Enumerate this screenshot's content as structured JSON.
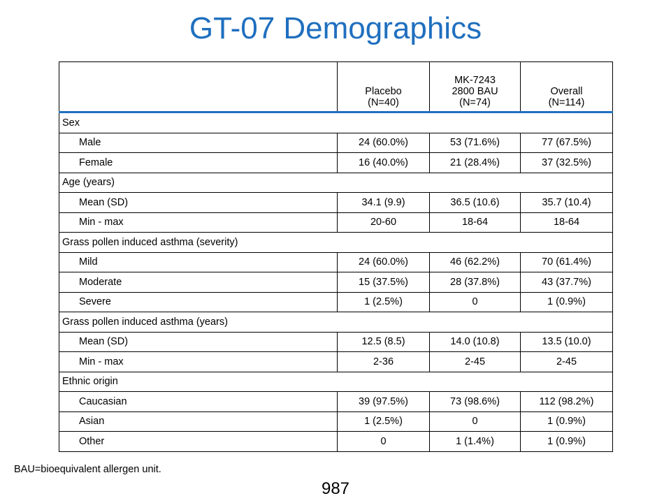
{
  "title": "GT-07 Demographics",
  "headers": {
    "placebo": [
      "Placebo",
      "(N=40)"
    ],
    "mk": [
      "MK-7243",
      "2800 BAU",
      "(N=74)"
    ],
    "overall": [
      "Overall",
      "(N=114)"
    ]
  },
  "rows": [
    {
      "type": "section",
      "label": "Sex"
    },
    {
      "type": "row",
      "label": "Male",
      "v": [
        "24 (60.0%)",
        "53 (71.6%)",
        "77 (67.5%)"
      ]
    },
    {
      "type": "row",
      "label": "Female",
      "v": [
        "16 (40.0%)",
        "21 (28.4%)",
        "37 (32.5%)"
      ]
    },
    {
      "type": "section",
      "label": "Age (years)"
    },
    {
      "type": "row",
      "label": "Mean (SD)",
      "v": [
        "34.1 (9.9)",
        "36.5 (10.6)",
        "35.7 (10.4)"
      ]
    },
    {
      "type": "row",
      "label": "Min - max",
      "v": [
        "20-60",
        "18-64",
        "18-64"
      ]
    },
    {
      "type": "section",
      "label": "Grass pollen induced asthma (severity)"
    },
    {
      "type": "row",
      "label": "Mild",
      "v": [
        "24 (60.0%)",
        "46 (62.2%)",
        "70 (61.4%)"
      ]
    },
    {
      "type": "row",
      "label": "Moderate",
      "v": [
        "15 (37.5%)",
        "28 (37.8%)",
        "43 (37.7%)"
      ]
    },
    {
      "type": "row",
      "label": "Severe",
      "v": [
        "1 (2.5%)",
        "0",
        "1 (0.9%)"
      ]
    },
    {
      "type": "section",
      "label": "Grass pollen induced asthma (years)"
    },
    {
      "type": "row",
      "label": "Mean (SD)",
      "v": [
        "12.5 (8.5)",
        "14.0 (10.8)",
        "13.5 (10.0)"
      ]
    },
    {
      "type": "row",
      "label": "Min - max",
      "v": [
        "2-36",
        "2-45",
        "2-45"
      ]
    },
    {
      "type": "section",
      "label": "Ethnic origin"
    },
    {
      "type": "row",
      "label": "Caucasian",
      "v": [
        "39 (97.5%)",
        "73 (98.6%)",
        "112 (98.2%)"
      ]
    },
    {
      "type": "row",
      "label": "Asian",
      "v": [
        "1 (2.5%)",
        "0",
        "1 (0.9%)"
      ]
    },
    {
      "type": "row",
      "label": "Other",
      "v": [
        "0",
        "1 (1.4%)",
        "1 (0.9%)"
      ]
    }
  ],
  "footnote": "BAU=bioequivalent allergen unit.",
  "page_number": "987",
  "colors": {
    "title": "#1f6fbf",
    "header_rule": "#1f6fbf"
  }
}
